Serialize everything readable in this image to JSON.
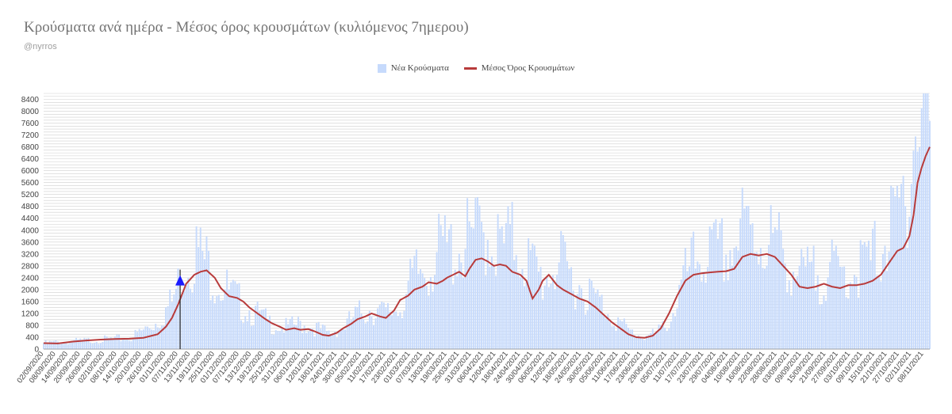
{
  "title": "Κρούσματα ανά ημέρα - Μέσος όρος κρουσμάτων (κυλιόμενος 7ημερου)",
  "subtitle": "@nyrros",
  "colors": {
    "bars": "#c6dafc",
    "line": "#b83b3b",
    "marker": "#1a1aff",
    "grid": "#cfcfcf",
    "text": "#444444"
  },
  "chart_data": {
    "type": "bar",
    "title": "Κρούσματα ανά ημέρα - Μέσος όρος κρουσμάτων (κυλιόμενος 7ημερου)",
    "xlabel": "",
    "ylabel": "",
    "ylim": [
      0,
      8600
    ],
    "yticks": [
      0,
      400,
      800,
      1200,
      1600,
      2000,
      2400,
      2800,
      3200,
      3600,
      4000,
      4400,
      4800,
      5200,
      5600,
      6000,
      6400,
      6800,
      7200,
      7600,
      8000,
      8400
    ],
    "grid": true,
    "legend_position": "top-center",
    "x_range": [
      "02/09/2020",
      "11/11/2021"
    ],
    "x_tick_labels": [
      "02/09/2020",
      "08/09/2020",
      "14/09/2020",
      "20/09/2020",
      "26/09/2020",
      "02/10/2020",
      "08/10/2020",
      "14/10/2020",
      "20/10/2020",
      "26/10/2020",
      "01/11/2020",
      "07/11/2020",
      "13/11/2020",
      "19/11/2020",
      "25/11/2020",
      "01/12/2020",
      "07/12/2020",
      "13/12/2020",
      "19/12/2020",
      "25/12/2020",
      "31/12/2020",
      "06/01/2021",
      "12/01/2021",
      "18/01/2021",
      "24/01/2021",
      "30/01/2021",
      "05/02/2021",
      "11/02/2021",
      "17/02/2021",
      "23/02/2021",
      "01/03/2021",
      "07/03/2021",
      "13/03/2021",
      "19/03/2021",
      "25/03/2021",
      "31/03/2021",
      "06/04/2021",
      "12/04/2021",
      "18/04/2021",
      "24/04/2021",
      "30/04/2021",
      "06/05/2021",
      "12/05/2021",
      "18/05/2021",
      "24/05/2021",
      "30/05/2021",
      "05/06/2021",
      "11/06/2021",
      "17/06/2021",
      "23/06/2021",
      "29/06/2021",
      "05/07/2021",
      "11/07/2021",
      "17/07/2021",
      "23/07/2021",
      "29/07/2021",
      "04/08/2021",
      "10/08/2021",
      "16/08/2021",
      "22/08/2021",
      "28/08/2021",
      "03/09/2021",
      "09/09/2021",
      "15/09/2021",
      "21/09/2021",
      "27/09/2021",
      "03/10/2021",
      "09/10/2021",
      "15/10/2021",
      "21/10/2021",
      "27/10/2021",
      "02/11/2021",
      "08/11/2021"
    ],
    "series": [
      {
        "name": "Νέα Κρούσματα",
        "type": "bar",
        "x": [
          "02/09/2020",
          "16/09/2020",
          "30/09/2020",
          "14/10/2020",
          "21/10/2020",
          "28/10/2020",
          "04/11/2020",
          "11/11/2020",
          "15/11/2020",
          "18/11/2020",
          "25/11/2020",
          "02/12/2020",
          "09/12/2020",
          "16/12/2020",
          "23/12/2020",
          "30/12/2020",
          "06/01/2021",
          "13/01/2021",
          "20/01/2021",
          "27/01/2021",
          "03/02/2021",
          "10/02/2021",
          "17/02/2021",
          "24/02/2021",
          "03/03/2021",
          "10/03/2021",
          "17/03/2021",
          "24/03/2021",
          "31/03/2021",
          "07/04/2021",
          "14/04/2021",
          "21/04/2021",
          "28/04/2021",
          "05/05/2021",
          "12/05/2021",
          "19/05/2021",
          "26/05/2021",
          "02/06/2021",
          "09/06/2021",
          "16/06/2021",
          "23/06/2021",
          "30/06/2021",
          "07/07/2021",
          "14/07/2021",
          "21/07/2021",
          "28/07/2021",
          "04/08/2021",
          "11/08/2021",
          "18/08/2021",
          "25/08/2021",
          "01/09/2021",
          "08/09/2021",
          "15/09/2021",
          "22/09/2021",
          "29/09/2021",
          "06/10/2021",
          "13/10/2021",
          "20/10/2021",
          "27/10/2021",
          "31/10/2021",
          "03/11/2021",
          "06/11/2021",
          "09/11/2021",
          "11/11/2021"
        ],
        "values": [
          200,
          250,
          300,
          350,
          600,
          900,
          1500,
          2800,
          3200,
          3000,
          2400,
          1800,
          1400,
          1100,
          800,
          700,
          800,
          700,
          500,
          700,
          1100,
          1300,
          1100,
          1400,
          2300,
          2700,
          3200,
          3200,
          3500,
          3800,
          3200,
          3500,
          2800,
          2200,
          2800,
          2300,
          1900,
          1500,
          1000,
          600,
          400,
          500,
          1000,
          2300,
          3000,
          3000,
          3100,
          3800,
          3600,
          3500,
          3000,
          2300,
          2400,
          2500,
          2400,
          2600,
          2800,
          3500,
          4200,
          5500,
          6800,
          7000,
          8500,
          7200
        ]
      },
      {
        "name": "Μέσος Όρος Κρουσμάτων",
        "type": "line",
        "x": [
          "02/09/2020",
          "09/09/2020",
          "16/09/2020",
          "23/09/2020",
          "30/09/2020",
          "07/10/2020",
          "14/10/2020",
          "21/10/2020",
          "28/10/2020",
          "01/11/2020",
          "04/11/2020",
          "07/11/2020",
          "11/11/2020",
          "15/11/2020",
          "18/11/2020",
          "21/11/2020",
          "25/11/2020",
          "28/11/2020",
          "02/12/2020",
          "06/12/2020",
          "09/12/2020",
          "12/12/2020",
          "16/12/2020",
          "20/12/2020",
          "23/12/2020",
          "27/12/2020",
          "30/12/2020",
          "03/01/2021",
          "06/01/2021",
          "10/01/2021",
          "13/01/2021",
          "17/01/2021",
          "20/01/2021",
          "24/01/2021",
          "27/01/2021",
          "31/01/2021",
          "03/02/2021",
          "07/02/2021",
          "10/02/2021",
          "14/02/2021",
          "17/02/2021",
          "21/02/2021",
          "24/02/2021",
          "28/02/2021",
          "03/03/2021",
          "07/03/2021",
          "10/03/2021",
          "14/03/2021",
          "17/03/2021",
          "19/03/2021",
          "22/03/2021",
          "25/03/2021",
          "28/03/2021",
          "30/03/2021",
          "02/04/2021",
          "05/04/2021",
          "08/04/2021",
          "11/04/2021",
          "14/04/2021",
          "17/04/2021",
          "20/04/2021",
          "24/04/2021",
          "27/04/2021",
          "30/04/2021",
          "03/05/2021",
          "05/05/2021",
          "08/05/2021",
          "12/05/2021",
          "15/05/2021",
          "19/05/2021",
          "23/05/2021",
          "27/05/2021",
          "31/05/2021",
          "04/06/2021",
          "08/06/2021",
          "12/06/2021",
          "16/06/2021",
          "20/06/2021",
          "24/06/2021",
          "28/06/2021",
          "02/07/2021",
          "06/07/2021",
          "10/07/2021",
          "14/07/2021",
          "18/07/2021",
          "22/07/2021",
          "26/07/2021",
          "30/07/2021",
          "03/08/2021",
          "07/08/2021",
          "11/08/2021",
          "15/08/2021",
          "19/08/2021",
          "23/08/2021",
          "27/08/2021",
          "31/08/2021",
          "04/09/2021",
          "08/09/2021",
          "12/09/2021",
          "16/09/2021",
          "20/09/2021",
          "24/09/2021",
          "28/09/2021",
          "02/10/2021",
          "06/10/2021",
          "10/10/2021",
          "14/10/2021",
          "18/10/2021",
          "22/10/2021",
          "26/10/2021",
          "29/10/2021",
          "01/11/2021",
          "03/11/2021",
          "05/11/2021",
          "07/11/2021",
          "09/11/2021",
          "11/11/2021"
        ],
        "values": [
          200,
          190,
          250,
          290,
          320,
          340,
          350,
          380,
          500,
          750,
          1050,
          1500,
          2200,
          2500,
          2600,
          2650,
          2400,
          2050,
          1780,
          1720,
          1600,
          1400,
          1200,
          1000,
          870,
          750,
          650,
          700,
          650,
          670,
          600,
          480,
          450,
          550,
          700,
          850,
          1000,
          1100,
          1200,
          1100,
          1050,
          1300,
          1650,
          1800,
          2000,
          2100,
          2250,
          2200,
          2300,
          2400,
          2500,
          2600,
          2450,
          2700,
          3000,
          3050,
          2950,
          2800,
          2850,
          2800,
          2600,
          2500,
          2300,
          1700,
          2000,
          2300,
          2500,
          2150,
          2000,
          1850,
          1700,
          1600,
          1400,
          1150,
          900,
          700,
          500,
          400,
          380,
          450,
          700,
          1200,
          1800,
          2300,
          2500,
          2550,
          2580,
          2600,
          2620,
          2700,
          3100,
          3200,
          3150,
          3200,
          3100,
          2800,
          2500,
          2100,
          2050,
          2100,
          2200,
          2100,
          2050,
          2150,
          2150,
          2200,
          2300,
          2500,
          2900,
          3300,
          3400,
          3800,
          4500,
          5600,
          6100,
          6500,
          6800
        ]
      }
    ],
    "markers": [
      {
        "x": "08/11/2020",
        "y": 2300,
        "shape": "triangle"
      }
    ]
  },
  "legend": [
    {
      "label": "Νέα Κρούσματα"
    },
    {
      "label": "Μέσος Όρος Κρουσμάτων"
    }
  ]
}
